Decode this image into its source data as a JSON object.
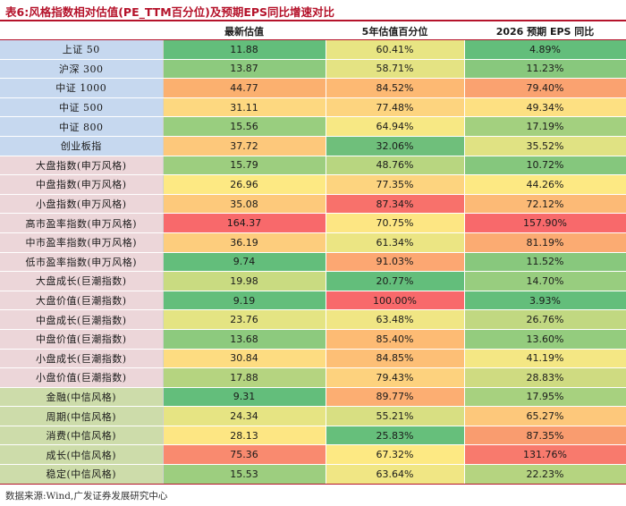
{
  "title": "表6:风格指数相对估值(PE_TTM百分位)及预期EPS同比增速对比",
  "headers": [
    "",
    "最新估值",
    "5年估值百分位",
    "2026 预期 EPS 同比"
  ],
  "rows": [
    {
      "name": "上证 50",
      "group": 1,
      "values": [
        "11.88",
        "60.41%",
        "4.89%"
      ],
      "colors": [
        "#63be7b",
        "#e8e583",
        "#63be7b"
      ]
    },
    {
      "name": "沪深 300",
      "group": 1,
      "values": [
        "13.87",
        "58.71%",
        "11.23%"
      ],
      "colors": [
        "#8dca7e",
        "#e4e383",
        "#88c87d"
      ]
    },
    {
      "name": "中证 1000",
      "group": 1,
      "values": [
        "44.77",
        "84.52%",
        "79.40%"
      ],
      "colors": [
        "#fbb06f",
        "#fdb973",
        "#faa270"
      ]
    },
    {
      "name": "中证 500",
      "group": 1,
      "values": [
        "31.11",
        "77.48%",
        "49.34%"
      ],
      "colors": [
        "#fdd880",
        "#fdd47f",
        "#fde082"
      ]
    },
    {
      "name": "中证 800",
      "group": 1,
      "values": [
        "15.56",
        "64.94%",
        "17.19%"
      ],
      "colors": [
        "#99ce7f",
        "#f7e884",
        "#a3d07f"
      ]
    },
    {
      "name": "创业板指",
      "group": 1,
      "values": [
        "37.72",
        "32.06%",
        "35.52%"
      ],
      "colors": [
        "#fdc87b",
        "#6fbf7b",
        "#e0e283"
      ]
    },
    {
      "name": "大盘指数(申万风格)",
      "group": 2,
      "values": [
        "15.79",
        "48.76%",
        "10.72%"
      ],
      "colors": [
        "#9dce7f",
        "#b8d680",
        "#85c77d"
      ]
    },
    {
      "name": "中盘指数(申万风格)",
      "group": 2,
      "values": [
        "26.96",
        "77.35%",
        "44.26%"
      ],
      "colors": [
        "#fde983",
        "#fdd47f",
        "#fde983"
      ]
    },
    {
      "name": "小盘指数(申万风格)",
      "group": 2,
      "values": [
        "35.08",
        "87.34%",
        "72.12%"
      ],
      "colors": [
        "#fdc97b",
        "#f8716b",
        "#fcba76"
      ]
    },
    {
      "name": "高市盈率指数(申万风格)",
      "group": 2,
      "values": [
        "164.37",
        "70.75%",
        "157.90%"
      ],
      "colors": [
        "#f8696b",
        "#fde683",
        "#f8696b"
      ]
    },
    {
      "name": "中市盈率指数(申万风格)",
      "group": 2,
      "values": [
        "36.19",
        "61.34%",
        "81.19%"
      ],
      "colors": [
        "#fdcd7d",
        "#ebe583",
        "#fbab72"
      ]
    },
    {
      "name": "低市盈率指数(申万风格)",
      "group": 2,
      "values": [
        "9.74",
        "91.03%",
        "11.52%"
      ],
      "colors": [
        "#63be7b",
        "#fca772",
        "#88c87d"
      ]
    },
    {
      "name": "大盘成长(巨潮指数)",
      "group": 2,
      "values": [
        "19.98",
        "20.77%",
        "14.70%"
      ],
      "colors": [
        "#c9db81",
        "#63be7b",
        "#98cd7f"
      ]
    },
    {
      "name": "大盘价值(巨潮指数)",
      "group": 2,
      "values": [
        "9.19",
        "100.00%",
        "3.93%"
      ],
      "colors": [
        "#63be7b",
        "#f8696b",
        "#63be7b"
      ]
    },
    {
      "name": "中盘成长(巨潮指数)",
      "group": 2,
      "values": [
        "23.76",
        "63.48%",
        "26.76%"
      ],
      "colors": [
        "#e4e483",
        "#f0e684",
        "#c1d881"
      ]
    },
    {
      "name": "中盘价值(巨潮指数)",
      "group": 2,
      "values": [
        "13.68",
        "85.40%",
        "13.60%"
      ],
      "colors": [
        "#8dca7e",
        "#fdbb74",
        "#94cc7e"
      ]
    },
    {
      "name": "小盘成长(巨潮指数)",
      "group": 2,
      "values": [
        "30.84",
        "84.85%",
        "41.19%"
      ],
      "colors": [
        "#fddc81",
        "#fdbf76",
        "#f4e784"
      ]
    },
    {
      "name": "小盘价值(巨潮指数)",
      "group": 2,
      "values": [
        "17.88",
        "79.43%",
        "28.83%"
      ],
      "colors": [
        "#b5d480",
        "#fdd27e",
        "#cfdb81"
      ]
    },
    {
      "name": "金融(中信风格)",
      "group": 3,
      "values": [
        "9.31",
        "89.77%",
        "17.95%"
      ],
      "colors": [
        "#63be7b",
        "#fcae72",
        "#a7d17f"
      ]
    },
    {
      "name": "周期(中信风格)",
      "group": 3,
      "values": [
        "24.34",
        "55.21%",
        "65.27%"
      ],
      "colors": [
        "#e6e483",
        "#d8df82",
        "#fdc87b"
      ]
    },
    {
      "name": "消费(中信风格)",
      "group": 3,
      "values": [
        "28.13",
        "25.83%",
        "87.35%"
      ],
      "colors": [
        "#fde683",
        "#66bf7b",
        "#f99c6f"
      ]
    },
    {
      "name": "成长(中信风格)",
      "group": 3,
      "values": [
        "75.36",
        "67.32%",
        "131.76%"
      ],
      "colors": [
        "#f98a6f",
        "#fde983",
        "#f87a6d"
      ]
    },
    {
      "name": "稳定(中信风格)",
      "group": 3,
      "values": [
        "15.53",
        "63.64%",
        "22.23%"
      ],
      "colors": [
        "#9dce7f",
        "#f0e684",
        "#b5d480"
      ]
    }
  ],
  "source": "数据来源:Wind,广发证券发展研究中心"
}
